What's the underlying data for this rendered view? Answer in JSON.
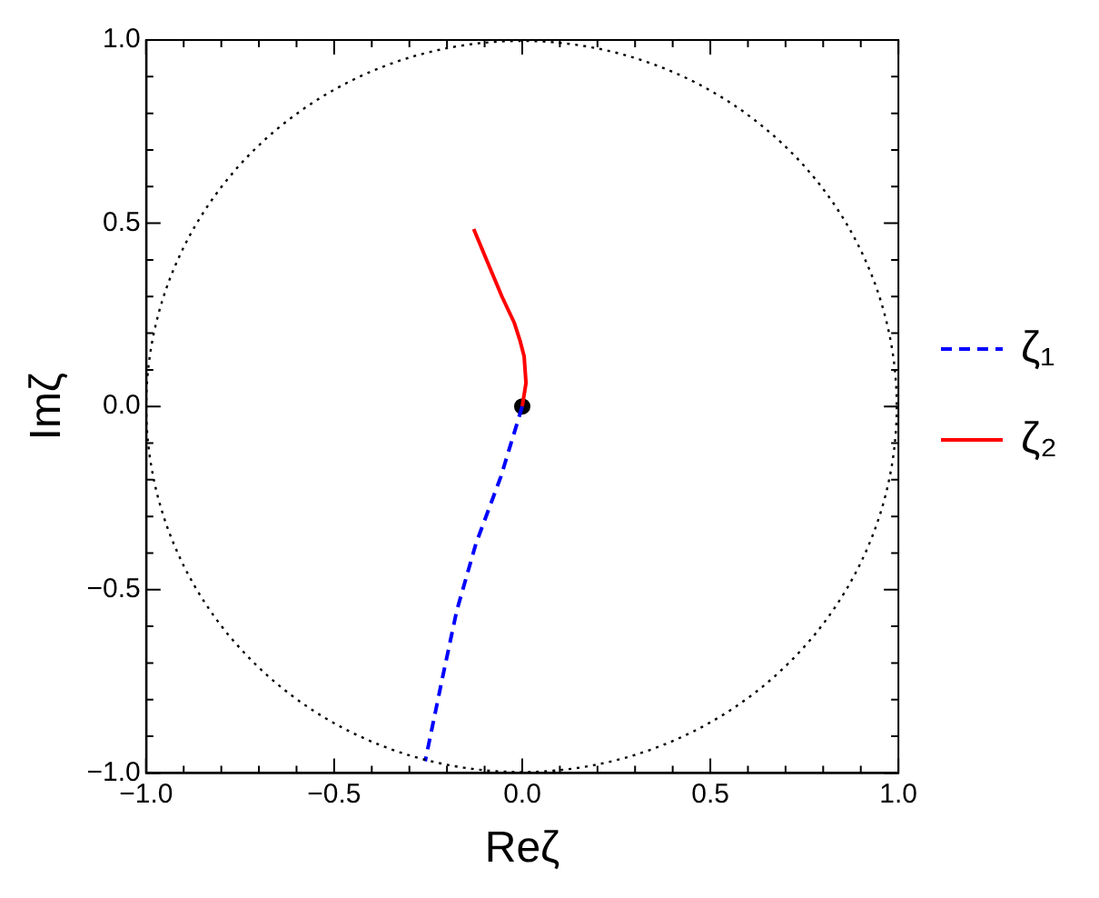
{
  "chart_data": {
    "type": "line",
    "xlabel": "Reζ",
    "ylabel": "Imζ",
    "xlim": [
      -1,
      1
    ],
    "ylim": [
      -1,
      1
    ],
    "xticks": [
      {
        "value": -1,
        "label": "−1.0"
      },
      {
        "value": -0.9,
        "label": null
      },
      {
        "value": -0.8,
        "label": null
      },
      {
        "value": -0.7,
        "label": null
      },
      {
        "value": -0.6,
        "label": null
      },
      {
        "value": -0.5,
        "label": "−0.5"
      },
      {
        "value": -0.4,
        "label": null
      },
      {
        "value": -0.3,
        "label": null
      },
      {
        "value": -0.2,
        "label": null
      },
      {
        "value": -0.1,
        "label": null
      },
      {
        "value": 0,
        "label": "0.0"
      },
      {
        "value": 0.1,
        "label": null
      },
      {
        "value": 0.2,
        "label": null
      },
      {
        "value": 0.3,
        "label": null
      },
      {
        "value": 0.4,
        "label": null
      },
      {
        "value": 0.5,
        "label": "0.5"
      },
      {
        "value": 0.6,
        "label": null
      },
      {
        "value": 0.7,
        "label": null
      },
      {
        "value": 0.8,
        "label": null
      },
      {
        "value": 0.9,
        "label": null
      },
      {
        "value": 1,
        "label": "1.0"
      }
    ],
    "yticks": [
      {
        "value": -1,
        "label": "−1.0"
      },
      {
        "value": -0.9,
        "label": null
      },
      {
        "value": -0.8,
        "label": null
      },
      {
        "value": -0.7,
        "label": null
      },
      {
        "value": -0.6,
        "label": null
      },
      {
        "value": -0.5,
        "label": "−0.5"
      },
      {
        "value": -0.4,
        "label": null
      },
      {
        "value": -0.3,
        "label": null
      },
      {
        "value": -0.2,
        "label": null
      },
      {
        "value": -0.1,
        "label": null
      },
      {
        "value": 0,
        "label": "0.0"
      },
      {
        "value": 0.1,
        "label": null
      },
      {
        "value": 0.2,
        "label": null
      },
      {
        "value": 0.3,
        "label": null
      },
      {
        "value": 0.4,
        "label": null
      },
      {
        "value": 0.5,
        "label": "0.5"
      },
      {
        "value": 0.6,
        "label": null
      },
      {
        "value": 0.7,
        "label": null
      },
      {
        "value": 0.8,
        "label": null
      },
      {
        "value": 0.9,
        "label": null
      },
      {
        "value": 1,
        "label": "1.0"
      }
    ],
    "grid": false,
    "legend": "right",
    "series": [
      {
        "name": "ζ₁",
        "color": "#0000ff",
        "line_style": "dashed",
        "marker": "none",
        "x": [
          0,
          -0.057,
          -0.123,
          -0.174,
          -0.212,
          -0.258
        ],
        "values": [
          0,
          -0.192,
          -0.374,
          -0.557,
          -0.74,
          -0.968
        ]
      },
      {
        "name": "ζ₂",
        "color": "#ff0000",
        "line_style": "solid",
        "marker": "none",
        "x": [
          0,
          0.01,
          0.005,
          -0.006,
          -0.021,
          -0.054,
          -0.092,
          -0.129
        ],
        "values": [
          0,
          0.064,
          0.137,
          0.18,
          0.228,
          0.3,
          0.393,
          0.484
        ]
      },
      {
        "type": "scatter",
        "color": "#000000",
        "marker": "circle",
        "x": [
          0
        ],
        "values": [
          0
        ]
      }
    ]
  }
}
